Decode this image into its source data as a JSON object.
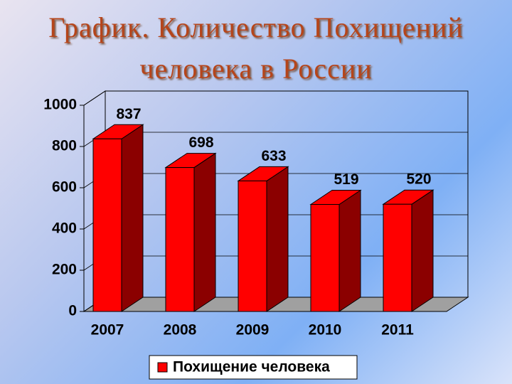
{
  "chart_data": {
    "type": "bar3d",
    "title": "График. Количество Похищений человека в России",
    "categories": [
      "2007",
      "2008",
      "2009",
      "2010",
      "2011"
    ],
    "series": [
      {
        "name": "Похищение человека",
        "color": "#ff0000",
        "values": [
          837,
          698,
          633,
          519,
          520
        ]
      }
    ],
    "ylim": [
      0,
      1000
    ],
    "yticks": [
      0,
      200,
      400,
      600,
      800,
      1000
    ],
    "grid": true,
    "legend": "bottom"
  }
}
